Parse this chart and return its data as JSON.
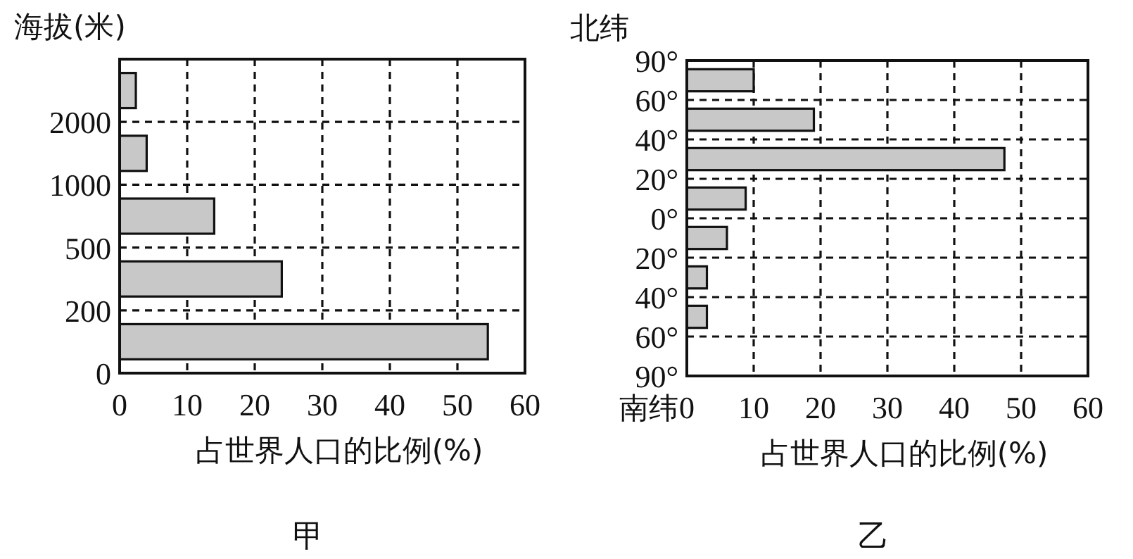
{
  "chart_data": [
    {
      "type": "bar",
      "orientation": "horizontal",
      "ylabel": "海拔(米)",
      "xlabel": "占世界人口的比例(%)",
      "annotations": [
        "0",
        "200",
        "500",
        "1000",
        "2000",
        "甲"
      ],
      "categories": [
        null,
        null,
        null,
        null,
        null
      ],
      "values": [
        2.4,
        4,
        14,
        24,
        54.5
      ],
      "color": "#c8c8c8",
      "xlim": [
        0,
        60
      ],
      "xticks": [
        0,
        10,
        20,
        30,
        40,
        50,
        60
      ],
      "grid": true
    },
    {
      "type": "bar",
      "orientation": "horizontal",
      "ylabel": "北纬",
      "xlabel": "占世界人口的比例(%)",
      "annotations": [
        "90°",
        "60°",
        "40°",
        "20°",
        "0°",
        "20°",
        "40°",
        "60°",
        "90°",
        "南纬",
        "乙"
      ],
      "categories": [
        null,
        null,
        null,
        null,
        null,
        null,
        null,
        null
      ],
      "values": [
        10,
        19,
        47.5,
        8.8,
        6,
        3,
        3,
        null
      ],
      "color": "#c8c8c8",
      "xlim": [
        0,
        60
      ],
      "xticks": [
        0,
        10,
        20,
        30,
        40,
        50,
        60
      ],
      "grid": true
    }
  ]
}
